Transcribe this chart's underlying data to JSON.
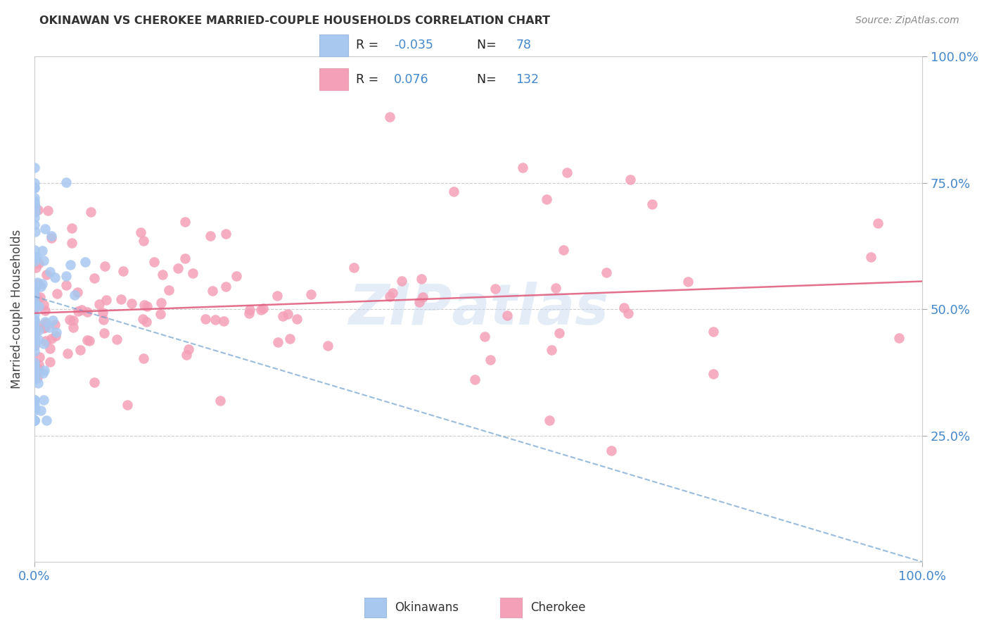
{
  "title": "OKINAWAN VS CHEROKEE MARRIED-COUPLE HOUSEHOLDS CORRELATION CHART",
  "source": "Source: ZipAtlas.com",
  "ylabel": "Married-couple Households",
  "watermark": "ZIPAtlas",
  "legend_r_okinawan": "-0.035",
  "legend_n_okinawan": "78",
  "legend_r_cherokee": "0.076",
  "legend_n_cherokee": "132",
  "okinawan_color": "#A8C8F0",
  "cherokee_color": "#F4A0B8",
  "okinawan_line_color": "#6699CC",
  "cherokee_line_color": "#E06080",
  "background_color": "#FFFFFF",
  "grid_color": "#CCCCCC",
  "blue_label_color": "#4488CC",
  "title_color": "#333333",
  "source_color": "#888888"
}
